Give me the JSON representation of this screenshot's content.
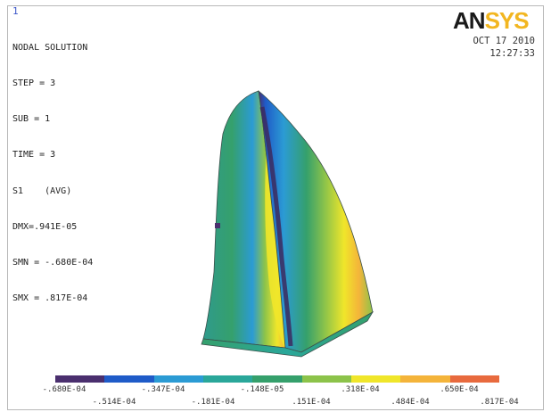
{
  "window_number": "1",
  "info_lines": [
    "NODAL SOLUTION",
    "STEP = 3",
    "SUB = 1",
    "TIME = 3",
    "S1    (AVG)",
    "DMX=.941E-05",
    "SMN = -.680E-04",
    "SMX = .817E-04"
  ],
  "logo": {
    "part1": "AN",
    "part2": "SYS"
  },
  "date": "OCT 17 2010",
  "time": "12:27:33",
  "legend": {
    "colors": [
      "#4a2f6e",
      "#1f5bc8",
      "#2b9bd4",
      "#2aa79a",
      "#35a06c",
      "#8cc34a",
      "#f0e62a",
      "#f4b43a",
      "#e86a3e"
    ],
    "labels_top": [
      "-.680E-04",
      "-.347E-04",
      "-.148E-05",
      ".318E-04",
      ".650E-04"
    ],
    "labels_bottom": [
      "-.514E-04",
      "-.181E-04",
      ".151E-04",
      ".484E-04",
      ".817E-04"
    ]
  },
  "colors": {
    "logo_dark": "#1a1a1a",
    "logo_accent": "#f2b620",
    "frame": "#b8b8b8"
  }
}
